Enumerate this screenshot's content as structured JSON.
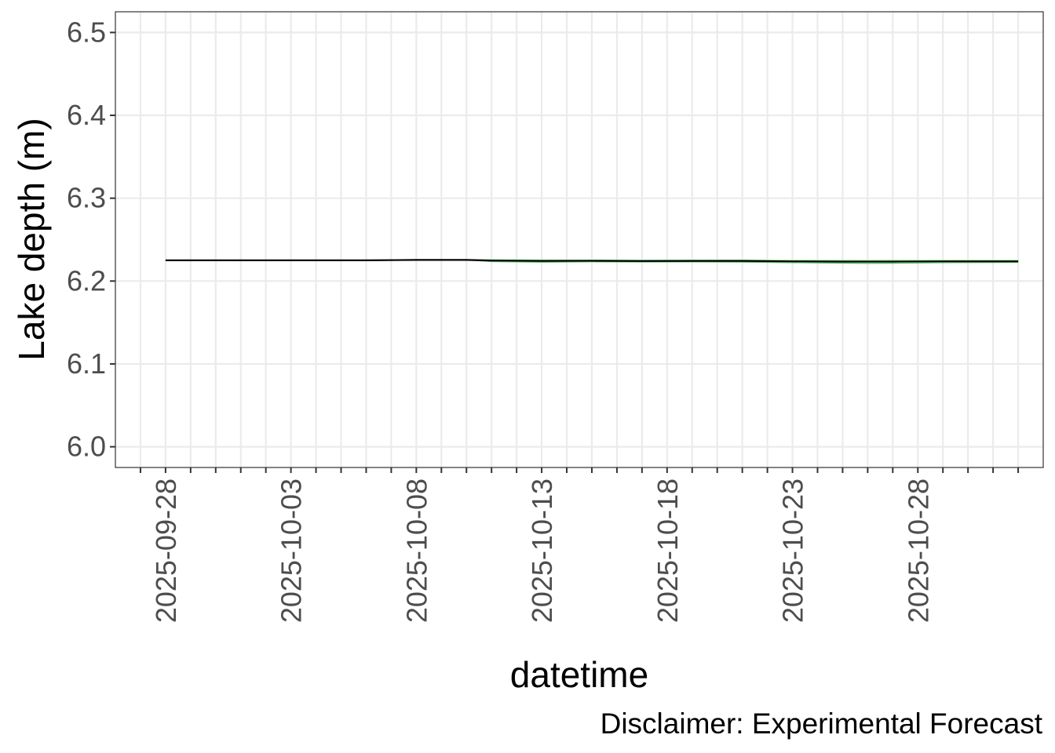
{
  "chart_data": {
    "type": "line",
    "title": "",
    "xlabel": "datetime",
    "ylabel": "Lake depth (m)",
    "caption": "Disclaimer: Experimental Forecast",
    "x_scale": "date",
    "xlim": [
      "2025-09-26",
      "2025-11-02"
    ],
    "ylim": [
      5.975,
      6.525
    ],
    "yticks": [
      6.0,
      6.1,
      6.2,
      6.3,
      6.4,
      6.5
    ],
    "ytick_labels": [
      "6.0",
      "6.1",
      "6.2",
      "6.3",
      "6.4",
      "6.5"
    ],
    "xticks": [
      "2025-09-28",
      "2025-10-03",
      "2025-10-08",
      "2025-10-13",
      "2025-10-18",
      "2025-10-23",
      "2025-10-28"
    ],
    "grid": true,
    "colors": {
      "observed_line": "#000000",
      "forecast_band": "#90ee90",
      "forecast_line": "#2e8b57",
      "grid": "#ebebeb",
      "axis_text": "#4d4d4d"
    },
    "series": [
      {
        "kind": "line",
        "x": [
          "2025-09-28",
          "2025-09-30",
          "2025-10-03",
          "2025-10-06",
          "2025-10-08",
          "2025-10-10",
          "2025-10-11",
          "2025-10-13",
          "2025-10-15",
          "2025-10-17",
          "2025-10-19",
          "2025-10-21",
          "2025-10-23",
          "2025-10-25",
          "2025-10-27",
          "2025-10-29",
          "2025-10-31",
          "2025-11-01"
        ],
        "y": [
          6.225,
          6.225,
          6.225,
          6.225,
          6.2255,
          6.2255,
          6.2248,
          6.2243,
          6.2245,
          6.2242,
          6.2243,
          6.2243,
          6.2238,
          6.2235,
          6.2235,
          6.2238,
          6.2238,
          6.2238
        ]
      },
      {
        "kind": "band",
        "x": [
          "2025-10-10",
          "2025-10-11",
          "2025-10-13",
          "2025-10-15",
          "2025-10-17",
          "2025-10-19",
          "2025-10-21",
          "2025-10-23",
          "2025-10-25",
          "2025-10-26",
          "2025-10-27",
          "2025-10-29",
          "2025-10-31",
          "2025-11-01"
        ],
        "ymin": [
          6.2255,
          6.2235,
          6.2228,
          6.2232,
          6.223,
          6.2231,
          6.2229,
          6.2222,
          6.2216,
          6.2213,
          6.2215,
          6.2222,
          6.2224,
          6.2225
        ],
        "ymax": [
          6.2255,
          6.2258,
          6.2255,
          6.2255,
          6.2252,
          6.2254,
          6.2255,
          6.2252,
          6.2252,
          6.225,
          6.2251,
          6.2252,
          6.2252,
          6.2252
        ]
      }
    ]
  }
}
